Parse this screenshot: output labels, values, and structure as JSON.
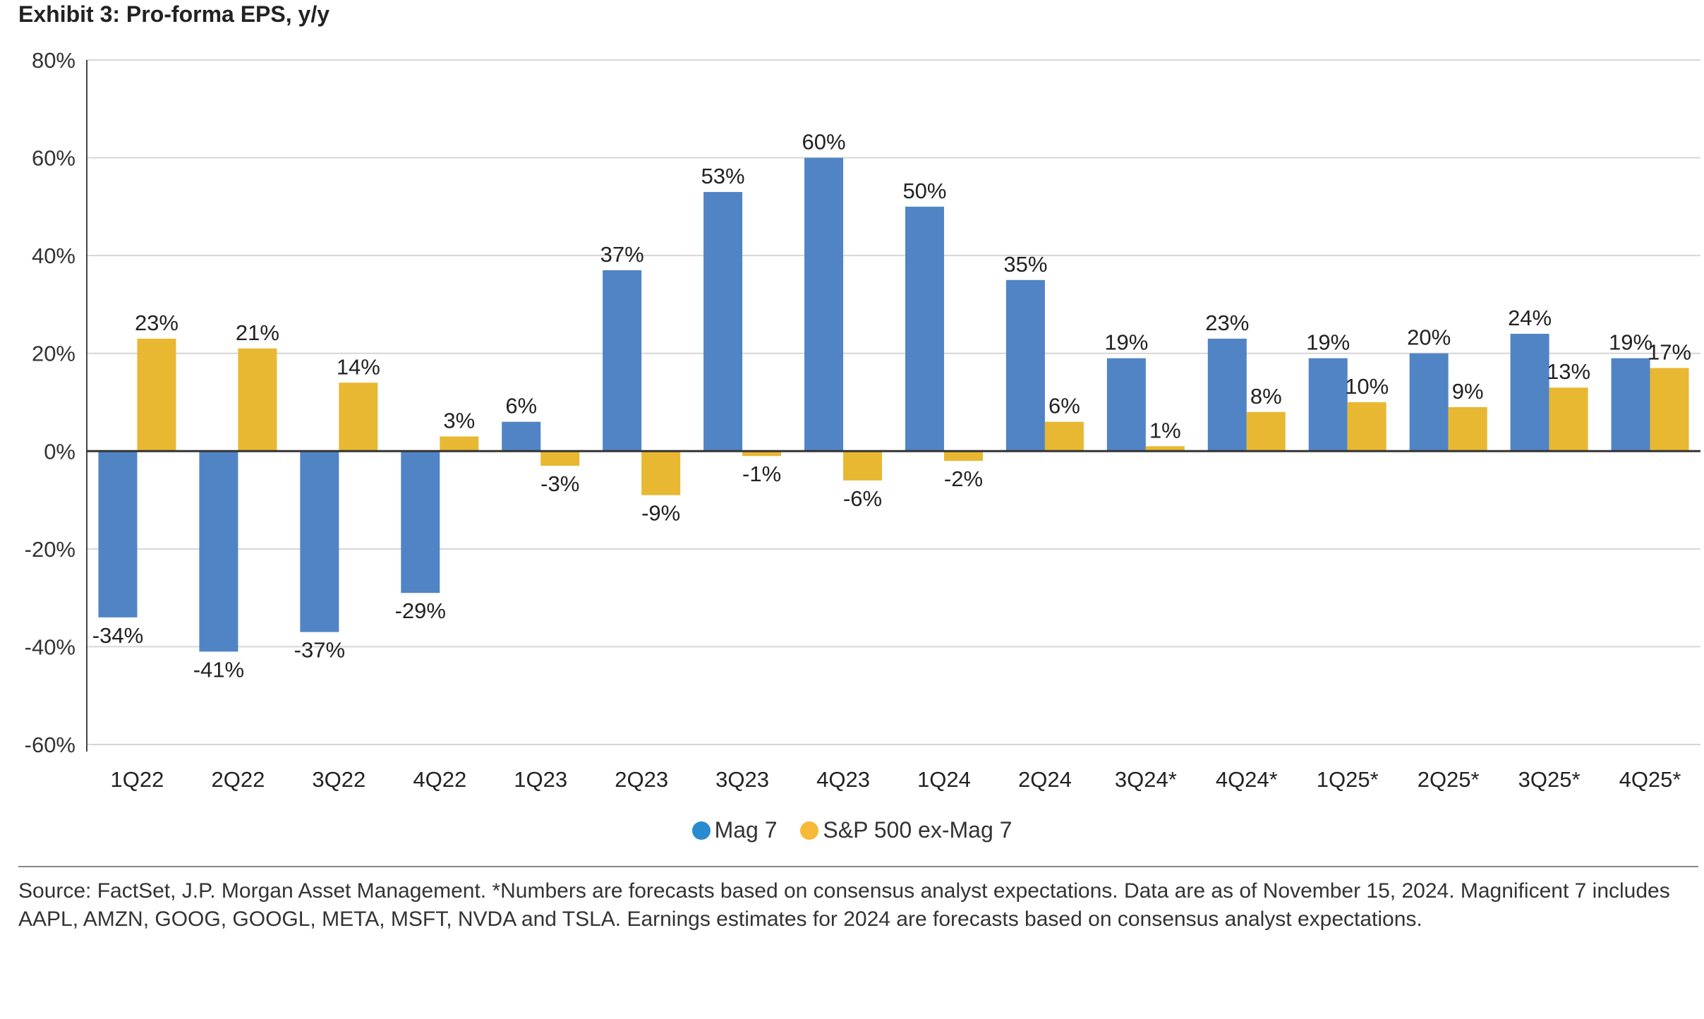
{
  "chart_data": {
    "type": "bar",
    "title": "Exhibit 3: Pro-forma EPS, y/y",
    "xlabel": "",
    "ylabel": "",
    "ylim": [
      -60,
      80
    ],
    "yticks": [
      80,
      60,
      40,
      20,
      0,
      -20,
      -40,
      -60
    ],
    "ytick_labels": [
      "80%",
      "60%",
      "40%",
      "20%",
      "0%",
      "-20%",
      "-40%",
      "-60%"
    ],
    "grid": true,
    "legend_position": "bottom-center",
    "categories": [
      "1Q22",
      "2Q22",
      "3Q22",
      "4Q22",
      "1Q23",
      "2Q23",
      "3Q23",
      "4Q23",
      "1Q24",
      "2Q24",
      "3Q24*",
      "4Q24*",
      "1Q25*",
      "2Q25*",
      "3Q25*",
      "4Q25*"
    ],
    "series": [
      {
        "name": "Mag 7",
        "color": "#5184c4",
        "legend_color": "#2a8ad0",
        "values": [
          -34,
          -41,
          -37,
          -29,
          6,
          37,
          53,
          60,
          50,
          35,
          19,
          23,
          19,
          20,
          24,
          19
        ]
      },
      {
        "name": "S&P 500 ex-Mag 7",
        "color": "#e9b832",
        "legend_color": "#f9b938",
        "values": [
          23,
          21,
          14,
          3,
          -3,
          -9,
          -1,
          -6,
          -2,
          6,
          1,
          8,
          10,
          9,
          13,
          17
        ]
      }
    ]
  },
  "source": "Source: FactSet, J.P. Morgan Asset Management. *Numbers are forecasts based on consensus analyst expectations. Data are as of November 15, 2024. Magnificent 7 includes AAPL, AMZN, GOOG, GOOGL, META, MSFT, NVDA and TSLA. Earnings estimates for 2024 are forecasts based on consensus analyst expectations."
}
